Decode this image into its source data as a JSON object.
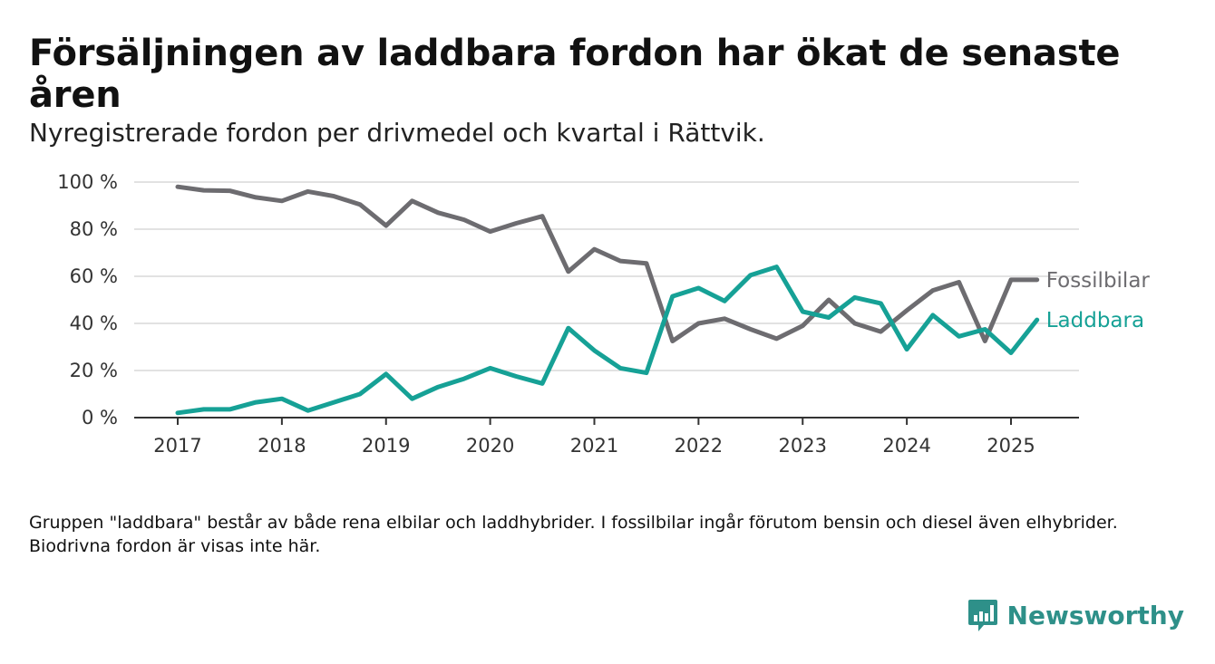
{
  "title": "Försäljningen av laddbara fordon har ökat de senaste åren",
  "subtitle": "Nyregistrerade fordon per drivmedel och kvartal i Rättvik.",
  "note": "Gruppen \"laddbara\" består av både rena elbilar och laddhybrider. I fossilbilar ingår förutom bensin och diesel även elhybrider. Biodrivna fordon är visas inte här.",
  "brand": "Newsworthy",
  "colors": {
    "fossil": "#6d6c70",
    "laddbara": "#16a196",
    "grid": "#d9d9d9",
    "axis": "#333333",
    "brand": "#2e9089"
  },
  "chart_data": {
    "type": "line",
    "x_unit": "year",
    "x": [
      2017.0,
      2017.25,
      2017.5,
      2017.75,
      2018.0,
      2018.25,
      2018.5,
      2018.75,
      2019.0,
      2019.25,
      2019.5,
      2019.75,
      2020.0,
      2020.25,
      2020.5,
      2020.75,
      2021.0,
      2021.25,
      2021.5,
      2021.75,
      2022.0,
      2022.25,
      2022.5,
      2022.75,
      2023.0,
      2023.25,
      2023.5,
      2023.75,
      2024.0,
      2024.25,
      2024.5,
      2024.75,
      2025.0,
      2025.25
    ],
    "series": [
      {
        "name": "Fossilbilar",
        "color": "#6d6c70",
        "values": [
          98,
          96.5,
          96.3,
          93.5,
          92,
          96,
          94,
          90.5,
          81.5,
          92,
          87,
          84,
          79,
          82.5,
          85.5,
          62,
          71.5,
          66.5,
          65.5,
          32.5,
          40,
          42,
          37.5,
          33.5,
          39,
          50,
          40,
          36.5,
          45.5,
          54,
          57.5,
          32.5,
          58.5,
          58.5
        ]
      },
      {
        "name": "Laddbara",
        "color": "#16a196",
        "values": [
          2,
          3.5,
          3.5,
          6.5,
          8,
          3,
          6.5,
          10,
          18.5,
          8,
          13,
          16.5,
          21,
          17.5,
          14.5,
          38,
          28.5,
          21,
          19,
          51.5,
          55,
          49.5,
          60.5,
          64,
          45,
          42.5,
          51,
          48.5,
          29,
          43.5,
          34.5,
          37.5,
          27.5,
          41.5
        ]
      }
    ],
    "ylim": [
      0,
      100
    ],
    "yticks": [
      0,
      20,
      40,
      60,
      80,
      100
    ],
    "ytick_labels": [
      "0 %",
      "20 %",
      "40 %",
      "60 %",
      "80 %",
      "100 %"
    ],
    "xticks": [
      2017,
      2018,
      2019,
      2020,
      2021,
      2022,
      2023,
      2024,
      2025
    ],
    "xtick_labels": [
      "2017",
      "2018",
      "2019",
      "2020",
      "2021",
      "2022",
      "2023",
      "2024",
      "2025"
    ],
    "grid": true,
    "legend": "end-of-line"
  }
}
